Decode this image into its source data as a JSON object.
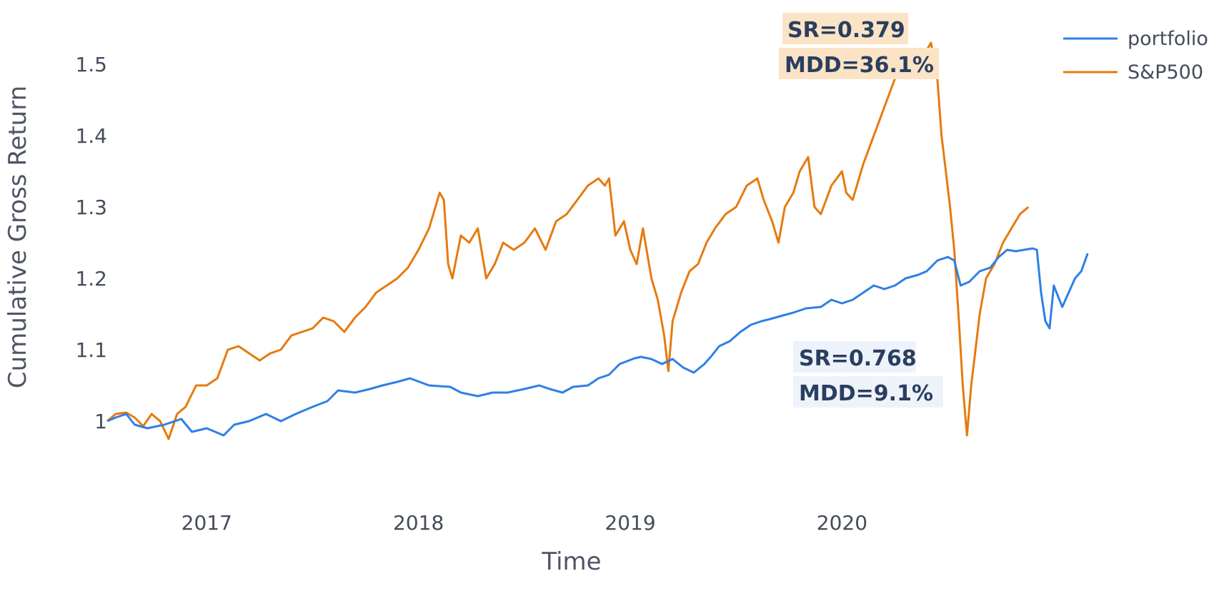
{
  "chart_data": {
    "type": "line",
    "xlabel": "Time",
    "ylabel": "Cumulative Gross Return",
    "xlim": [
      2016.53,
      2020.95
    ],
    "ylim": [
      0.94,
      1.56
    ],
    "x_ticks": [
      {
        "value": 2017,
        "label": "2017"
      },
      {
        "value": 2018,
        "label": "2018"
      },
      {
        "value": 2019,
        "label": "2019"
      },
      {
        "value": 2020,
        "label": "2020"
      }
    ],
    "y_ticks": [
      {
        "value": 1.0,
        "label": "1"
      },
      {
        "value": 1.1,
        "label": "1.1"
      },
      {
        "value": 1.2,
        "label": "1.2"
      },
      {
        "value": 1.3,
        "label": "1.3"
      },
      {
        "value": 1.4,
        "label": "1.4"
      },
      {
        "value": 1.5,
        "label": "1.5"
      }
    ],
    "grid": false,
    "legend_position": "top-right",
    "series": [
      {
        "name": "portfolio",
        "color": "#2f7fe6",
        "points": [
          [
            2016.53,
            1.0
          ],
          [
            2016.57,
            1.005
          ],
          [
            2016.62,
            1.01
          ],
          [
            2016.66,
            0.995
          ],
          [
            2016.72,
            0.99
          ],
          [
            2016.8,
            0.995
          ],
          [
            2016.88,
            1.003
          ],
          [
            2016.93,
            0.985
          ],
          [
            2017.0,
            0.99
          ],
          [
            2017.04,
            0.985
          ],
          [
            2017.08,
            0.98
          ],
          [
            2017.13,
            0.995
          ],
          [
            2017.2,
            1.0
          ],
          [
            2017.28,
            1.01
          ],
          [
            2017.35,
            1.0
          ],
          [
            2017.42,
            1.01
          ],
          [
            2017.5,
            1.02
          ],
          [
            2017.57,
            1.028
          ],
          [
            2017.62,
            1.043
          ],
          [
            2017.7,
            1.04
          ],
          [
            2017.77,
            1.045
          ],
          [
            2017.83,
            1.05
          ],
          [
            2017.9,
            1.055
          ],
          [
            2017.96,
            1.06
          ],
          [
            2018.05,
            1.05
          ],
          [
            2018.15,
            1.048
          ],
          [
            2018.2,
            1.04
          ],
          [
            2018.28,
            1.035
          ],
          [
            2018.35,
            1.04
          ],
          [
            2018.42,
            1.04
          ],
          [
            2018.5,
            1.045
          ],
          [
            2018.57,
            1.05
          ],
          [
            2018.62,
            1.045
          ],
          [
            2018.68,
            1.04
          ],
          [
            2018.73,
            1.048
          ],
          [
            2018.8,
            1.05
          ],
          [
            2018.85,
            1.06
          ],
          [
            2018.9,
            1.065
          ],
          [
            2018.95,
            1.08
          ],
          [
            2019.02,
            1.088
          ],
          [
            2019.05,
            1.09
          ],
          [
            2019.1,
            1.087
          ],
          [
            2019.15,
            1.08
          ],
          [
            2019.2,
            1.087
          ],
          [
            2019.25,
            1.075
          ],
          [
            2019.3,
            1.068
          ],
          [
            2019.35,
            1.08
          ],
          [
            2019.38,
            1.09
          ],
          [
            2019.42,
            1.105
          ],
          [
            2019.47,
            1.112
          ],
          [
            2019.52,
            1.125
          ],
          [
            2019.57,
            1.135
          ],
          [
            2019.62,
            1.14
          ],
          [
            2019.66,
            1.143
          ],
          [
            2019.72,
            1.148
          ],
          [
            2019.77,
            1.152
          ],
          [
            2019.83,
            1.158
          ],
          [
            2019.9,
            1.16
          ],
          [
            2019.95,
            1.17
          ],
          [
            2020.0,
            1.165
          ],
          [
            2020.05,
            1.17
          ],
          [
            2020.1,
            1.18
          ],
          [
            2020.15,
            1.19
          ],
          [
            2020.2,
            1.185
          ],
          [
            2020.25,
            1.19
          ],
          [
            2020.3,
            1.2
          ],
          [
            2020.36,
            1.205
          ],
          [
            2020.4,
            1.21
          ],
          [
            2020.45,
            1.225
          ],
          [
            2020.5,
            1.23
          ],
          [
            2020.53,
            1.225
          ],
          [
            2020.56,
            1.19
          ],
          [
            2020.6,
            1.195
          ],
          [
            2020.65,
            1.21
          ],
          [
            2020.7,
            1.215
          ],
          [
            2020.74,
            1.23
          ],
          [
            2020.78,
            1.24
          ],
          [
            2020.82,
            1.238
          ],
          [
            2020.86,
            1.24
          ],
          [
            2020.9,
            1.242
          ],
          [
            2020.92,
            1.24
          ],
          [
            2020.94,
            1.18
          ],
          [
            2020.96,
            1.14
          ],
          [
            2020.98,
            1.13
          ],
          [
            2021.0,
            1.19
          ],
          [
            2021.02,
            1.175
          ],
          [
            2021.04,
            1.16
          ],
          [
            2021.07,
            1.18
          ],
          [
            2021.1,
            1.2
          ],
          [
            2021.13,
            1.21
          ],
          [
            2021.16,
            1.235
          ]
        ]
      },
      {
        "name": "S&P500",
        "color": "#e67a0e",
        "points": [
          [
            2016.53,
            1.0
          ],
          [
            2016.57,
            1.01
          ],
          [
            2016.62,
            1.012
          ],
          [
            2016.66,
            1.005
          ],
          [
            2016.7,
            0.993
          ],
          [
            2016.74,
            1.01
          ],
          [
            2016.78,
            1.0
          ],
          [
            2016.82,
            0.975
          ],
          [
            2016.86,
            1.01
          ],
          [
            2016.9,
            1.02
          ],
          [
            2016.95,
            1.05
          ],
          [
            2017.0,
            1.05
          ],
          [
            2017.05,
            1.06
          ],
          [
            2017.1,
            1.1
          ],
          [
            2017.15,
            1.105
          ],
          [
            2017.2,
            1.095
          ],
          [
            2017.25,
            1.085
          ],
          [
            2017.3,
            1.095
          ],
          [
            2017.35,
            1.1
          ],
          [
            2017.4,
            1.12
          ],
          [
            2017.45,
            1.125
          ],
          [
            2017.5,
            1.13
          ],
          [
            2017.55,
            1.145
          ],
          [
            2017.6,
            1.14
          ],
          [
            2017.65,
            1.125
          ],
          [
            2017.7,
            1.145
          ],
          [
            2017.75,
            1.16
          ],
          [
            2017.8,
            1.18
          ],
          [
            2017.85,
            1.19
          ],
          [
            2017.9,
            1.2
          ],
          [
            2017.95,
            1.215
          ],
          [
            2018.0,
            1.24
          ],
          [
            2018.05,
            1.27
          ],
          [
            2018.1,
            1.32
          ],
          [
            2018.12,
            1.31
          ],
          [
            2018.14,
            1.22
          ],
          [
            2018.16,
            1.2
          ],
          [
            2018.2,
            1.26
          ],
          [
            2018.24,
            1.25
          ],
          [
            2018.28,
            1.27
          ],
          [
            2018.32,
            1.2
          ],
          [
            2018.36,
            1.22
          ],
          [
            2018.4,
            1.25
          ],
          [
            2018.45,
            1.24
          ],
          [
            2018.5,
            1.25
          ],
          [
            2018.55,
            1.27
          ],
          [
            2018.6,
            1.24
          ],
          [
            2018.65,
            1.28
          ],
          [
            2018.7,
            1.29
          ],
          [
            2018.75,
            1.31
          ],
          [
            2018.8,
            1.33
          ],
          [
            2018.85,
            1.34
          ],
          [
            2018.88,
            1.33
          ],
          [
            2018.9,
            1.34
          ],
          [
            2018.93,
            1.26
          ],
          [
            2018.97,
            1.28
          ],
          [
            2019.0,
            1.24
          ],
          [
            2019.03,
            1.22
          ],
          [
            2019.06,
            1.27
          ],
          [
            2019.1,
            1.2
          ],
          [
            2019.13,
            1.17
          ],
          [
            2019.16,
            1.12
          ],
          [
            2019.18,
            1.07
          ],
          [
            2019.2,
            1.14
          ],
          [
            2019.24,
            1.18
          ],
          [
            2019.28,
            1.21
          ],
          [
            2019.32,
            1.22
          ],
          [
            2019.36,
            1.25
          ],
          [
            2019.4,
            1.27
          ],
          [
            2019.45,
            1.29
          ],
          [
            2019.5,
            1.3
          ],
          [
            2019.55,
            1.33
          ],
          [
            2019.6,
            1.34
          ],
          [
            2019.63,
            1.31
          ],
          [
            2019.67,
            1.28
          ],
          [
            2019.7,
            1.25
          ],
          [
            2019.73,
            1.3
          ],
          [
            2019.77,
            1.32
          ],
          [
            2019.8,
            1.35
          ],
          [
            2019.84,
            1.37
          ],
          [
            2019.87,
            1.3
          ],
          [
            2019.9,
            1.29
          ],
          [
            2019.95,
            1.33
          ],
          [
            2020.0,
            1.35
          ],
          [
            2020.02,
            1.32
          ],
          [
            2020.05,
            1.31
          ],
          [
            2020.1,
            1.36
          ],
          [
            2020.15,
            1.4
          ],
          [
            2020.2,
            1.44
          ],
          [
            2020.25,
            1.48
          ],
          [
            2020.3,
            1.5
          ],
          [
            2020.35,
            1.52
          ],
          [
            2020.38,
            1.51
          ],
          [
            2020.42,
            1.53
          ],
          [
            2020.45,
            1.48
          ],
          [
            2020.47,
            1.4
          ],
          [
            2020.49,
            1.35
          ],
          [
            2020.51,
            1.3
          ],
          [
            2020.53,
            1.24
          ],
          [
            2020.55,
            1.15
          ],
          [
            2020.57,
            1.05
          ],
          [
            2020.59,
            0.98
          ],
          [
            2020.61,
            1.05
          ],
          [
            2020.63,
            1.1
          ],
          [
            2020.65,
            1.15
          ],
          [
            2020.68,
            1.2
          ],
          [
            2020.72,
            1.22
          ],
          [
            2020.76,
            1.25
          ],
          [
            2020.8,
            1.27
          ],
          [
            2020.84,
            1.29
          ],
          [
            2020.88,
            1.3
          ]
        ]
      }
    ],
    "annotations": [
      {
        "series": "S&P500",
        "lines": [
          "SR=0.379",
          "MDD=36.1%"
        ],
        "bg": "#fbe3c6"
      },
      {
        "series": "portfolio",
        "lines": [
          "SR=0.768",
          "MDD=9.1%"
        ],
        "bg": "#eef3fb"
      }
    ]
  }
}
